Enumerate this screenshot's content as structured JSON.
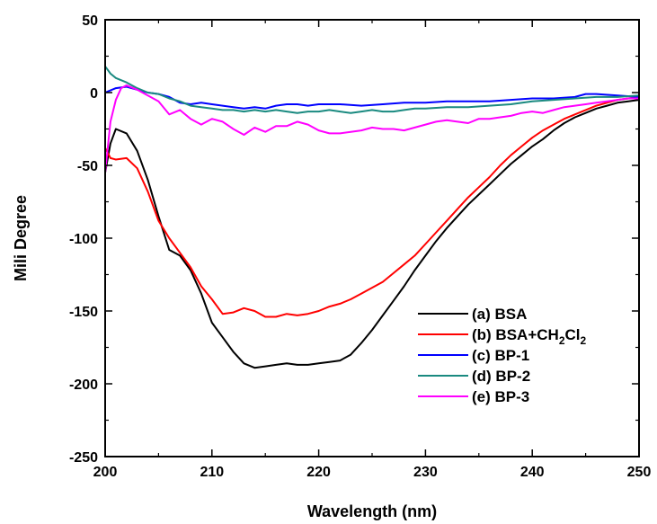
{
  "chart_data": {
    "type": "line",
    "title": "",
    "xlabel": "Wavelength (nm)",
    "ylabel": "Mili Degree",
    "xlim": [
      200,
      250
    ],
    "ylim": [
      -250,
      50
    ],
    "xticks": [
      200,
      210,
      220,
      230,
      240,
      250
    ],
    "yticks": [
      50,
      0,
      -50,
      -100,
      -150,
      -200,
      -250
    ],
    "grid": false,
    "legend_position": "bottom-right",
    "series": [
      {
        "name": "(a) BSA",
        "legend_parts": [
          {
            "text": "(a) BSA",
            "sub": false
          }
        ],
        "color": "#000000",
        "points": [
          [
            200,
            -55
          ],
          [
            200.5,
            -35
          ],
          [
            201,
            -25
          ],
          [
            202,
            -28
          ],
          [
            203,
            -40
          ],
          [
            204,
            -60
          ],
          [
            205,
            -85
          ],
          [
            206,
            -108
          ],
          [
            207,
            -112
          ],
          [
            208,
            -122
          ],
          [
            209,
            -138
          ],
          [
            210,
            -158
          ],
          [
            211,
            -168
          ],
          [
            212,
            -178
          ],
          [
            213,
            -186
          ],
          [
            214,
            -189
          ],
          [
            215,
            -188
          ],
          [
            216,
            -187
          ],
          [
            217,
            -186
          ],
          [
            218,
            -187
          ],
          [
            219,
            -187
          ],
          [
            220,
            -186
          ],
          [
            221,
            -185
          ],
          [
            222,
            -184
          ],
          [
            223,
            -180
          ],
          [
            224,
            -172
          ],
          [
            225,
            -163
          ],
          [
            226,
            -153
          ],
          [
            227,
            -143
          ],
          [
            228,
            -133
          ],
          [
            229,
            -122
          ],
          [
            230,
            -112
          ],
          [
            231,
            -102
          ],
          [
            232,
            -93
          ],
          [
            233,
            -85
          ],
          [
            234,
            -77
          ],
          [
            235,
            -70
          ],
          [
            236,
            -63
          ],
          [
            237,
            -56
          ],
          [
            238,
            -49
          ],
          [
            239,
            -43
          ],
          [
            240,
            -37
          ],
          [
            241,
            -32
          ],
          [
            242,
            -26
          ],
          [
            243,
            -21
          ],
          [
            244,
            -17
          ],
          [
            245,
            -14
          ],
          [
            246,
            -11
          ],
          [
            247,
            -9
          ],
          [
            248,
            -7
          ],
          [
            249,
            -6
          ],
          [
            250,
            -5
          ]
        ]
      },
      {
        "name": "(b) BSA+CH2Cl2",
        "legend_parts": [
          {
            "text": "(b) BSA+CH",
            "sub": false
          },
          {
            "text": "2",
            "sub": true
          },
          {
            "text": "Cl",
            "sub": false
          },
          {
            "text": "2",
            "sub": true
          }
        ],
        "color": "#ff0000",
        "points": [
          [
            200,
            -38
          ],
          [
            200.5,
            -45
          ],
          [
            201,
            -46
          ],
          [
            202,
            -45
          ],
          [
            203,
            -52
          ],
          [
            204,
            -68
          ],
          [
            205,
            -88
          ],
          [
            206,
            -100
          ],
          [
            207,
            -110
          ],
          [
            208,
            -120
          ],
          [
            209,
            -133
          ],
          [
            210,
            -142
          ],
          [
            211,
            -152
          ],
          [
            212,
            -151
          ],
          [
            213,
            -148
          ],
          [
            214,
            -150
          ],
          [
            215,
            -154
          ],
          [
            216,
            -154
          ],
          [
            217,
            -152
          ],
          [
            218,
            -153
          ],
          [
            219,
            -152
          ],
          [
            220,
            -150
          ],
          [
            221,
            -147
          ],
          [
            222,
            -145
          ],
          [
            223,
            -142
          ],
          [
            224,
            -138
          ],
          [
            225,
            -134
          ],
          [
            226,
            -130
          ],
          [
            227,
            -124
          ],
          [
            228,
            -118
          ],
          [
            229,
            -112
          ],
          [
            230,
            -104
          ],
          [
            231,
            -96
          ],
          [
            232,
            -88
          ],
          [
            233,
            -80
          ],
          [
            234,
            -72
          ],
          [
            235,
            -65
          ],
          [
            236,
            -58
          ],
          [
            237,
            -50
          ],
          [
            238,
            -43
          ],
          [
            239,
            -37
          ],
          [
            240,
            -31
          ],
          [
            241,
            -26
          ],
          [
            242,
            -22
          ],
          [
            243,
            -18
          ],
          [
            244,
            -15
          ],
          [
            245,
            -12
          ],
          [
            246,
            -9
          ],
          [
            247,
            -7
          ],
          [
            248,
            -5
          ],
          [
            249,
            -4
          ],
          [
            250,
            -3
          ]
        ]
      },
      {
        "name": "(c) BP-1",
        "legend_parts": [
          {
            "text": "(c) BP-1",
            "sub": false
          }
        ],
        "color": "#0000ff",
        "points": [
          [
            200,
            0
          ],
          [
            201,
            3
          ],
          [
            202,
            4
          ],
          [
            203,
            2
          ],
          [
            204,
            0
          ],
          [
            205,
            -1
          ],
          [
            206,
            -3
          ],
          [
            207,
            -7
          ],
          [
            208,
            -8
          ],
          [
            209,
            -7
          ],
          [
            210,
            -8
          ],
          [
            211,
            -9
          ],
          [
            212,
            -10
          ],
          [
            213,
            -11
          ],
          [
            214,
            -10
          ],
          [
            215,
            -11
          ],
          [
            216,
            -9
          ],
          [
            217,
            -8
          ],
          [
            218,
            -8
          ],
          [
            219,
            -9
          ],
          [
            220,
            -8
          ],
          [
            222,
            -8
          ],
          [
            224,
            -9
          ],
          [
            226,
            -8
          ],
          [
            228,
            -7
          ],
          [
            230,
            -7
          ],
          [
            232,
            -6
          ],
          [
            234,
            -6
          ],
          [
            236,
            -6
          ],
          [
            238,
            -5
          ],
          [
            240,
            -4
          ],
          [
            242,
            -4
          ],
          [
            244,
            -3
          ],
          [
            245,
            -1
          ],
          [
            246,
            -1
          ],
          [
            248,
            -2
          ],
          [
            250,
            -3
          ]
        ]
      },
      {
        "name": "(d) BP-2",
        "legend_parts": [
          {
            "text": "(d) BP-2",
            "sub": false
          }
        ],
        "color": "#1a8a80",
        "points": [
          [
            200,
            18
          ],
          [
            200.5,
            13
          ],
          [
            201,
            10
          ],
          [
            202,
            7
          ],
          [
            203,
            3
          ],
          [
            204,
            0
          ],
          [
            205,
            -1
          ],
          [
            206,
            -4
          ],
          [
            207,
            -6
          ],
          [
            208,
            -9
          ],
          [
            209,
            -10
          ],
          [
            210,
            -11
          ],
          [
            211,
            -12
          ],
          [
            212,
            -12
          ],
          [
            213,
            -13
          ],
          [
            214,
            -12
          ],
          [
            215,
            -13
          ],
          [
            216,
            -12
          ],
          [
            217,
            -13
          ],
          [
            218,
            -14
          ],
          [
            219,
            -13
          ],
          [
            220,
            -13
          ],
          [
            221,
            -12
          ],
          [
            222,
            -13
          ],
          [
            223,
            -14
          ],
          [
            224,
            -13
          ],
          [
            225,
            -12
          ],
          [
            226,
            -13
          ],
          [
            227,
            -13
          ],
          [
            228,
            -12
          ],
          [
            229,
            -11
          ],
          [
            230,
            -11
          ],
          [
            232,
            -10
          ],
          [
            234,
            -10
          ],
          [
            236,
            -9
          ],
          [
            238,
            -8
          ],
          [
            240,
            -6
          ],
          [
            242,
            -5
          ],
          [
            244,
            -4
          ],
          [
            246,
            -3
          ],
          [
            248,
            -3
          ],
          [
            250,
            -2
          ]
        ]
      },
      {
        "name": "(e) BP-3",
        "legend_parts": [
          {
            "text": "(e) BP-3",
            "sub": false
          }
        ],
        "color": "#ff00ff",
        "points": [
          [
            200,
            -55
          ],
          [
            200.5,
            -20
          ],
          [
            201,
            -5
          ],
          [
            201.5,
            3
          ],
          [
            202,
            5
          ],
          [
            203,
            2
          ],
          [
            204,
            -2
          ],
          [
            205,
            -6
          ],
          [
            206,
            -15
          ],
          [
            207,
            -12
          ],
          [
            208,
            -18
          ],
          [
            209,
            -22
          ],
          [
            210,
            -18
          ],
          [
            211,
            -20
          ],
          [
            212,
            -25
          ],
          [
            213,
            -29
          ],
          [
            214,
            -24
          ],
          [
            215,
            -27
          ],
          [
            216,
            -23
          ],
          [
            217,
            -23
          ],
          [
            218,
            -20
          ],
          [
            219,
            -22
          ],
          [
            220,
            -26
          ],
          [
            221,
            -28
          ],
          [
            222,
            -28
          ],
          [
            223,
            -27
          ],
          [
            224,
            -26
          ],
          [
            225,
            -24
          ],
          [
            226,
            -25
          ],
          [
            227,
            -25
          ],
          [
            228,
            -26
          ],
          [
            229,
            -24
          ],
          [
            230,
            -22
          ],
          [
            231,
            -20
          ],
          [
            232,
            -19
          ],
          [
            233,
            -20
          ],
          [
            234,
            -21
          ],
          [
            235,
            -18
          ],
          [
            236,
            -18
          ],
          [
            237,
            -17
          ],
          [
            238,
            -16
          ],
          [
            239,
            -14
          ],
          [
            240,
            -13
          ],
          [
            241,
            -14
          ],
          [
            242,
            -12
          ],
          [
            243,
            -10
          ],
          [
            244,
            -9
          ],
          [
            245,
            -8
          ],
          [
            246,
            -7
          ],
          [
            247,
            -6
          ],
          [
            248,
            -5
          ],
          [
            249,
            -4
          ],
          [
            250,
            -4
          ]
        ]
      }
    ]
  }
}
